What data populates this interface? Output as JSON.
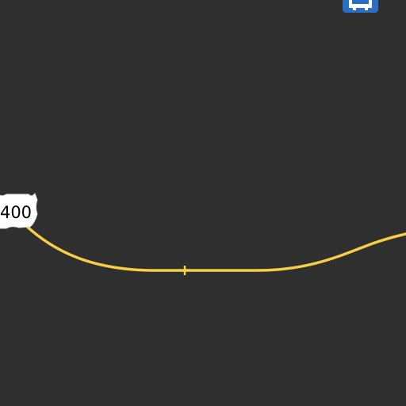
{
  "map": {
    "background_color": "#2f2f2f",
    "road": {
      "color": "#f6cf45",
      "type": "us-highway"
    },
    "highway_shield": {
      "route_number": "400",
      "fill_color": "#ffffff",
      "text_color": "#000000"
    },
    "map_icon": {
      "name": "bus-icon",
      "color": "#2a6fc4"
    }
  }
}
